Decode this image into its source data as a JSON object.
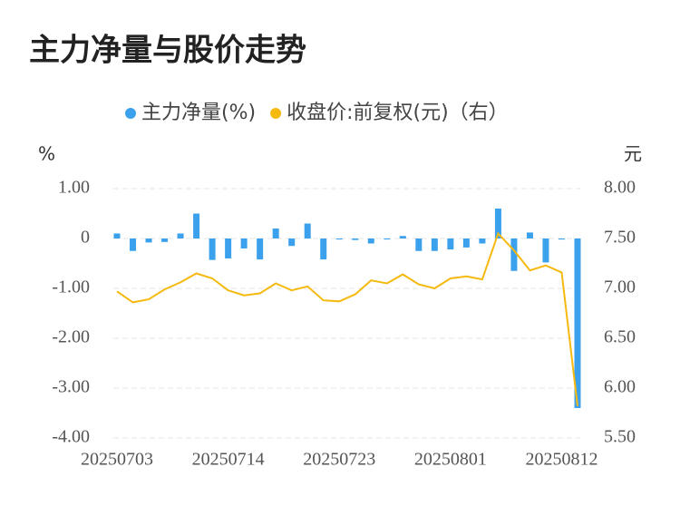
{
  "chart_data": {
    "type": "bar_line",
    "title": "主力净量与股价走势",
    "y_unit": "%",
    "y2_unit": "元",
    "categories": [
      "20250703",
      null,
      null,
      null,
      null,
      null,
      null,
      "20250714",
      null,
      null,
      null,
      null,
      null,
      null,
      "20250723",
      null,
      null,
      null,
      null,
      null,
      null,
      "20250801",
      null,
      null,
      null,
      null,
      null,
      null,
      "20250812",
      null
    ],
    "series": [
      {
        "name": "主力净量(%)",
        "type": "bar",
        "color": "#3ba1ec",
        "values": [
          0.1,
          -0.25,
          -0.08,
          -0.07,
          0.1,
          0.5,
          -0.43,
          -0.4,
          -0.2,
          -0.42,
          0.2,
          -0.15,
          0.3,
          -0.42,
          -0.02,
          -0.03,
          -0.1,
          -0.02,
          0.05,
          -0.25,
          -0.25,
          -0.22,
          -0.18,
          -0.1,
          0.6,
          -0.65,
          0.12,
          -0.48,
          -0.02,
          -3.4
        ]
      },
      {
        "name": "收盘价:前复权(元)（右）",
        "type": "line",
        "axis": "y2",
        "color": "#f5b90f",
        "values": [
          6.97,
          6.86,
          6.89,
          6.99,
          7.06,
          7.15,
          7.1,
          6.98,
          6.93,
          6.95,
          7.05,
          6.98,
          7.02,
          6.88,
          6.87,
          6.94,
          7.08,
          7.05,
          7.14,
          7.04,
          7.0,
          7.1,
          7.12,
          7.09,
          7.55,
          7.38,
          7.18,
          7.23,
          7.16,
          5.82
        ]
      }
    ],
    "ylim": [
      -4,
      1
    ],
    "yticks": [
      {
        "value": 1,
        "label": "1.00"
      },
      0,
      {
        "value": -1,
        "label": "-1.00"
      },
      {
        "value": -2,
        "label": "-2.00"
      },
      {
        "value": -3,
        "label": "-3.00"
      },
      {
        "value": -4,
        "label": "-4.00"
      }
    ],
    "y2lim": [
      5.5,
      8
    ],
    "y2ticks": [
      {
        "value": 8,
        "label": "8.00"
      },
      {
        "value": 7.5,
        "label": "7.50"
      },
      {
        "value": 7,
        "label": "7.00"
      },
      {
        "value": 6.5,
        "label": "6.50"
      },
      {
        "value": 6,
        "label": "6.00"
      },
      {
        "value": 5.5,
        "label": "5.50"
      }
    ],
    "grid": true
  }
}
